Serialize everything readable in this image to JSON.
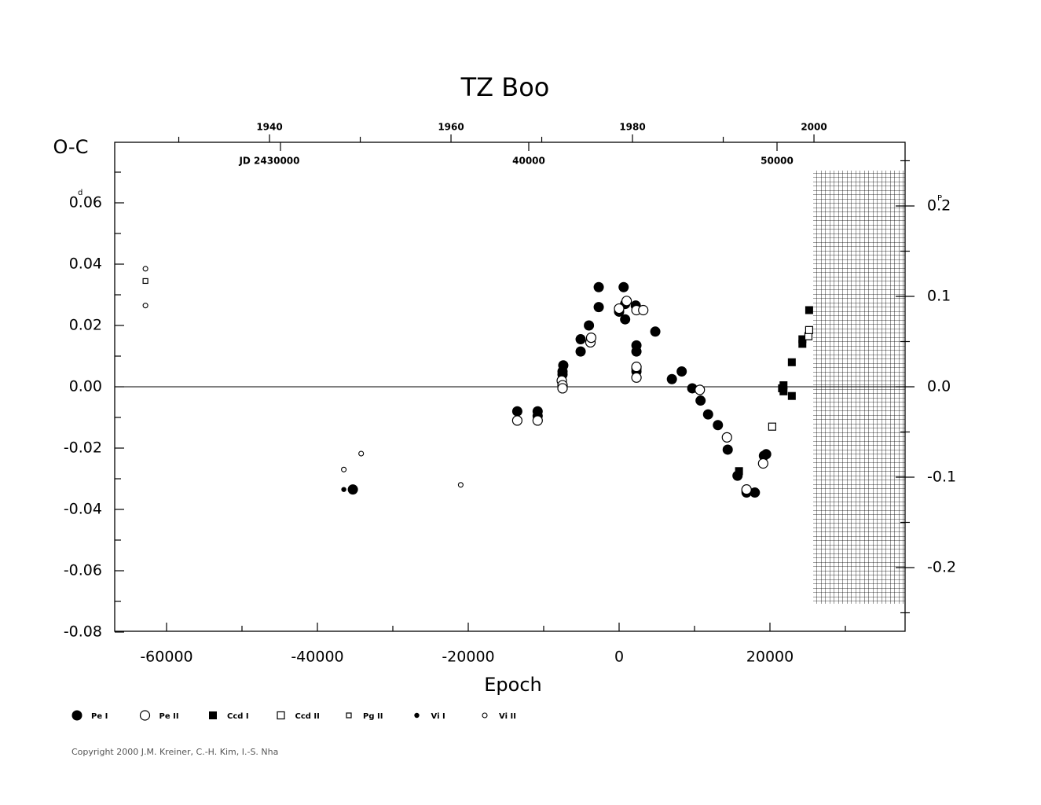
{
  "chart_data": {
    "type": "scatter",
    "title": "TZ  Boo",
    "y_label": "O-C",
    "x_label": "Epoch",
    "y_unit": "d",
    "y2_unit": "P",
    "xlim": [
      -66875,
      37917
    ],
    "xticks": [
      -60000,
      -40000,
      -20000,
      0,
      20000
    ],
    "xminorticks": [
      -50000,
      -30000,
      -10000,
      10000,
      30000
    ],
    "ylim": [
      -0.08,
      0.08
    ],
    "yticks": [
      {
        "value": -0.08,
        "label": "-0.08"
      },
      {
        "value": -0.06,
        "label": "-0.06"
      },
      {
        "value": -0.04,
        "label": "-0.04"
      },
      {
        "value": -0.02,
        "label": "-0.02"
      },
      {
        "value": 0,
        "label": "0.00"
      },
      {
        "value": 0.02,
        "label": "0.02"
      },
      {
        "value": 0.04,
        "label": "0.04"
      },
      {
        "value": 0.06,
        "label": "0.06"
      }
    ],
    "yminorticks": [
      -0.07,
      -0.05,
      -0.03,
      -0.01,
      0.01,
      0.03,
      0.05,
      0.07
    ],
    "y2lim": [
      -0.2713,
      0.2713
    ],
    "y2ticks": [
      {
        "value": -0.2,
        "label": "-0.2"
      },
      {
        "value": -0.1,
        "label": "-0.1"
      },
      {
        "value": 0,
        "label": "0.0"
      },
      {
        "value": 0.1,
        "label": "0.1"
      },
      {
        "value": 0.2,
        "label": "0.2"
      }
    ],
    "y2minorticks": [
      -0.25,
      -0.15,
      -0.05,
      0.05,
      0.15,
      0.25
    ],
    "x2lim": [
      1922.94,
      2010.04
    ],
    "x2ticks": [
      1940,
      1960,
      1980,
      2000
    ],
    "x2minorticks": [
      1930,
      1950,
      1970,
      1990
    ],
    "jdlim": [
      2423323,
      2455158
    ],
    "jdticks": [
      {
        "value": 2430000,
        "label": "JD  2430000"
      },
      {
        "value": 2440000,
        "label": "40000"
      },
      {
        "value": 2450000,
        "label": "50000"
      }
    ],
    "series": [
      {
        "name": "Pe I",
        "marker": "circle",
        "color": "#000000",
        "x": [
          -35300,
          -13500,
          -10800,
          -10800,
          -7400,
          -7500,
          -7500,
          -5100,
          -5100,
          -4000,
          -2700,
          -2700,
          0,
          600,
          800,
          800,
          2200,
          2300,
          2300,
          2300,
          2300,
          4800,
          7000,
          8300,
          9700,
          10800,
          11800,
          13100,
          14400,
          15700,
          16900,
          18000,
          19200,
          19500,
          16900
        ],
        "values": [
          -0.0335,
          -0.008,
          -0.008,
          -0.0095,
          0.007,
          0.005,
          0.004,
          0.0155,
          0.0115,
          0.02,
          0.0325,
          0.026,
          0.0245,
          0.0325,
          0.027,
          0.022,
          0.0265,
          0.0135,
          0.0115,
          0.006,
          0.005,
          0.018,
          0.0025,
          0.005,
          -0.0005,
          -0.0045,
          -0.009,
          -0.0125,
          -0.0205,
          -0.029,
          -0.0345,
          -0.0345,
          -0.0225,
          -0.022,
          -0.034
        ]
      },
      {
        "name": "Pe II",
        "marker": "circle-open",
        "color": "#000000",
        "x": [
          -13500,
          -10800,
          -7600,
          -7500,
          -7500,
          -3800,
          -3700,
          0,
          1000,
          2300,
          3200,
          2300,
          2300,
          10700,
          14300,
          16900,
          19100
        ],
        "values": [
          -0.011,
          -0.011,
          0.002,
          0.0005,
          -0.0005,
          0.0145,
          0.016,
          0.0255,
          0.028,
          0.025,
          0.025,
          0.0065,
          0.003,
          -0.001,
          -0.0165,
          -0.0335,
          -0.025
        ]
      },
      {
        "name": "Ccd I",
        "marker": "square",
        "color": "#000000",
        "x": [
          15900,
          21600,
          21800,
          21800,
          22900,
          22900,
          24300,
          24300,
          25200
        ],
        "values": [
          -0.0275,
          -0.0005,
          0.0005,
          -0.0015,
          -0.003,
          0.008,
          0.0155,
          0.014,
          0.025
        ]
      },
      {
        "name": "Ccd II",
        "marker": "square-open",
        "color": "#000000",
        "x": [
          20300,
          25100,
          25200
        ],
        "values": [
          -0.013,
          0.0165,
          0.0185
        ]
      },
      {
        "name": "Pg II",
        "marker": "square-open-small",
        "color": "#000000",
        "x": [
          -62800
        ],
        "values": [
          0.0345
        ]
      },
      {
        "name": "Vi I",
        "marker": "dot",
        "color": "#000000",
        "x": [
          -36500
        ],
        "values": [
          -0.0335
        ]
      },
      {
        "name": "Vi II",
        "marker": "circle-open-small",
        "color": "#000000",
        "x": [
          -62800,
          -62800,
          -36500,
          -34200,
          -21000
        ],
        "values": [
          0.0385,
          0.0265,
          -0.027,
          -0.0218,
          -0.032
        ]
      }
    ],
    "copyright": "Copyright 2000 J.M. Kreiner, C.-H. Kim, I.-S. Nha"
  }
}
